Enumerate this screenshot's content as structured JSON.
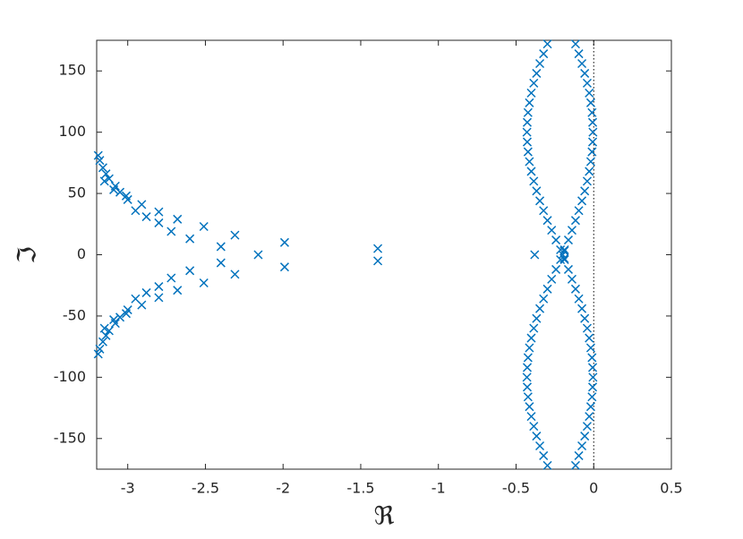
{
  "chart_data": {
    "type": "scatter",
    "xlabel": "ℜ",
    "ylabel": "ℑ",
    "xlim": [
      -3.2,
      0.5
    ],
    "ylim": [
      -175,
      175
    ],
    "xticks": [
      -3,
      -2.5,
      -2,
      -1.5,
      -1,
      -0.5,
      0,
      0.5
    ],
    "yticks": [
      -150,
      -100,
      -50,
      0,
      50,
      100,
      150
    ],
    "reference_line_x": 0,
    "marker": "x",
    "series": [
      {
        "color": "#0072bd",
        "x": [
          -3.19,
          -3.18,
          -3.16,
          -3.14,
          -3.15,
          -3.12,
          -3.09,
          -3.08,
          -3.05,
          -3.01,
          -3.0,
          -2.95,
          -2.91,
          -2.88,
          -2.8,
          -2.8,
          -2.72,
          -2.68,
          -2.6,
          -2.51,
          -2.4,
          -2.31,
          -1.99,
          -1.39,
          -3.19,
          -3.18,
          -3.16,
          -3.14,
          -3.15,
          -3.12,
          -3.09,
          -3.08,
          -3.05,
          -3.01,
          -3.0,
          -2.95,
          -2.91,
          -2.88,
          -2.8,
          -2.8,
          -2.72,
          -2.68,
          -2.6,
          -2.51,
          -2.4,
          -2.31,
          -1.99,
          -1.39,
          -2.16,
          -0.38,
          -0.2,
          -0.19,
          -0.19,
          -0.214,
          -0.243,
          -0.271,
          -0.298,
          -0.323,
          -0.347,
          -0.368,
          -0.386,
          -0.402,
          -0.414,
          -0.423,
          -0.428,
          -0.43,
          -0.428,
          -0.423,
          -0.414,
          -0.402,
          -0.386,
          -0.368,
          -0.347,
          -0.323,
          -0.298,
          -0.188,
          -0.163,
          -0.14,
          -0.117,
          -0.096,
          -0.076,
          -0.058,
          -0.042,
          -0.029,
          -0.019,
          -0.011,
          -0.007,
          -0.005,
          -0.007,
          -0.011,
          -0.019,
          -0.029,
          -0.042,
          -0.058,
          -0.076,
          -0.096,
          -0.117,
          -0.214,
          -0.243,
          -0.271,
          -0.298,
          -0.323,
          -0.347,
          -0.368,
          -0.386,
          -0.402,
          -0.414,
          -0.423,
          -0.428,
          -0.43,
          -0.428,
          -0.423,
          -0.414,
          -0.402,
          -0.386,
          -0.368,
          -0.347,
          -0.323,
          -0.298,
          -0.188,
          -0.163,
          -0.14,
          -0.117,
          -0.096,
          -0.076,
          -0.058,
          -0.042,
          -0.029,
          -0.019,
          -0.011,
          -0.007,
          -0.005,
          -0.007,
          -0.011,
          -0.019,
          -0.029,
          -0.042,
          -0.058,
          -0.076,
          -0.096,
          -0.117
        ],
        "y": [
          81,
          77,
          71,
          66,
          60,
          62,
          53,
          56,
          51,
          48,
          45,
          36,
          41,
          31,
          35,
          26,
          19,
          29,
          13,
          23,
          6.6,
          16,
          10,
          5,
          -81,
          -77,
          -71,
          -66,
          -60,
          -62,
          -53,
          -56,
          -51,
          -48,
          -45,
          -36,
          -41,
          -31,
          -35,
          -26,
          -19,
          -29,
          -13,
          -23,
          -6.6,
          -16,
          -10,
          -5,
          0,
          0,
          0,
          3,
          -3,
          4,
          12,
          20,
          28,
          36,
          44,
          52,
          60,
          68,
          76,
          84,
          92,
          100,
          108,
          116,
          124,
          132,
          140,
          148,
          156,
          164,
          172,
          4,
          12,
          20,
          28,
          36,
          44,
          52,
          60,
          68,
          76,
          84,
          92,
          100,
          108,
          116,
          124,
          132,
          140,
          148,
          156,
          164,
          172,
          -4,
          -12,
          -20,
          -28,
          -36,
          -44,
          -52,
          -60,
          -68,
          -76,
          -84,
          -92,
          -100,
          -108,
          -116,
          -124,
          -132,
          -140,
          -148,
          -156,
          -164,
          -172,
          -4,
          -12,
          -20,
          -28,
          -36,
          -44,
          -52,
          -60,
          -68,
          -76,
          -84,
          -92,
          -100,
          -108,
          -116,
          -124,
          -132,
          -140,
          -148,
          -156,
          -164,
          -172
        ]
      }
    ]
  }
}
